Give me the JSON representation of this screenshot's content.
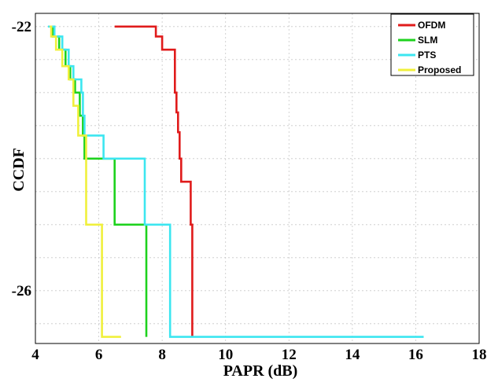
{
  "chart_data": {
    "type": "line",
    "title": "",
    "xlabel": "PAPR (dB)",
    "ylabel": "CCDF",
    "xlim": [
      4,
      18
    ],
    "ylim": [
      -26.8,
      -21.8
    ],
    "x_ticks": [
      4,
      6,
      8,
      10,
      12,
      14,
      16,
      18
    ],
    "y_ticks": [
      -22,
      -26
    ],
    "x_tick_labels": [
      "4",
      "6",
      "8",
      "10",
      "12",
      "14",
      "16",
      "18"
    ],
    "y_tick_labels": [
      "-22",
      "-26"
    ],
    "grid": true,
    "legend_position": "top-right",
    "series": [
      {
        "name": "OFDM",
        "color": "#e01b1b",
        "points": [
          [
            6.5,
            -22
          ],
          [
            7.8,
            -22
          ],
          [
            7.8,
            -22.15
          ],
          [
            8.0,
            -22.15
          ],
          [
            8.0,
            -22.35
          ],
          [
            8.4,
            -22.35
          ],
          [
            8.4,
            -23
          ],
          [
            8.45,
            -23
          ],
          [
            8.45,
            -23.3
          ],
          [
            8.5,
            -23.3
          ],
          [
            8.5,
            -23.6
          ],
          [
            8.55,
            -23.6
          ],
          [
            8.55,
            -24
          ],
          [
            8.6,
            -24
          ],
          [
            8.6,
            -24.35
          ],
          [
            8.9,
            -24.35
          ],
          [
            8.9,
            -25
          ],
          [
            8.95,
            -25
          ],
          [
            8.95,
            -26.7
          ]
        ]
      },
      {
        "name": "SLM",
        "color": "#1ed21e",
        "points": [
          [
            4.5,
            -22
          ],
          [
            4.55,
            -22
          ],
          [
            4.55,
            -22.15
          ],
          [
            4.75,
            -22.15
          ],
          [
            4.75,
            -22.35
          ],
          [
            4.95,
            -22.35
          ],
          [
            4.95,
            -22.6
          ],
          [
            5.1,
            -22.6
          ],
          [
            5.1,
            -22.8
          ],
          [
            5.25,
            -22.8
          ],
          [
            5.25,
            -23
          ],
          [
            5.4,
            -23
          ],
          [
            5.4,
            -23.35
          ],
          [
            5.5,
            -23.35
          ],
          [
            5.5,
            -23.65
          ],
          [
            5.55,
            -23.65
          ],
          [
            5.55,
            -24
          ],
          [
            6.5,
            -24
          ],
          [
            6.5,
            -25
          ],
          [
            7.5,
            -25
          ],
          [
            7.5,
            -26.7
          ]
        ]
      },
      {
        "name": "PTS",
        "color": "#3ce6f0",
        "points": [
          [
            4.4,
            -22
          ],
          [
            4.6,
            -22
          ],
          [
            4.6,
            -22.15
          ],
          [
            4.85,
            -22.15
          ],
          [
            4.85,
            -22.35
          ],
          [
            5.05,
            -22.35
          ],
          [
            5.05,
            -22.6
          ],
          [
            5.2,
            -22.6
          ],
          [
            5.2,
            -22.8
          ],
          [
            5.45,
            -22.8
          ],
          [
            5.45,
            -23
          ],
          [
            5.5,
            -23
          ],
          [
            5.5,
            -23.35
          ],
          [
            5.55,
            -23.35
          ],
          [
            5.55,
            -23.65
          ],
          [
            6.15,
            -23.65
          ],
          [
            6.15,
            -24
          ],
          [
            7.45,
            -24
          ],
          [
            7.45,
            -25
          ],
          [
            8.25,
            -25
          ],
          [
            8.25,
            -26.7
          ],
          [
            16.25,
            -26.7
          ]
        ]
      },
      {
        "name": "Proposed",
        "color": "#f0f03c",
        "points": [
          [
            4.45,
            -22
          ],
          [
            4.5,
            -22
          ],
          [
            4.5,
            -22.15
          ],
          [
            4.65,
            -22.15
          ],
          [
            4.65,
            -22.35
          ],
          [
            4.85,
            -22.35
          ],
          [
            4.85,
            -22.6
          ],
          [
            5.05,
            -22.6
          ],
          [
            5.05,
            -22.8
          ],
          [
            5.2,
            -22.8
          ],
          [
            5.2,
            -23.2
          ],
          [
            5.35,
            -23.2
          ],
          [
            5.35,
            -23.65
          ],
          [
            5.6,
            -23.65
          ],
          [
            5.6,
            -25
          ],
          [
            6.1,
            -25
          ],
          [
            6.1,
            -26.7
          ],
          [
            6.7,
            -26.7
          ]
        ]
      }
    ]
  }
}
